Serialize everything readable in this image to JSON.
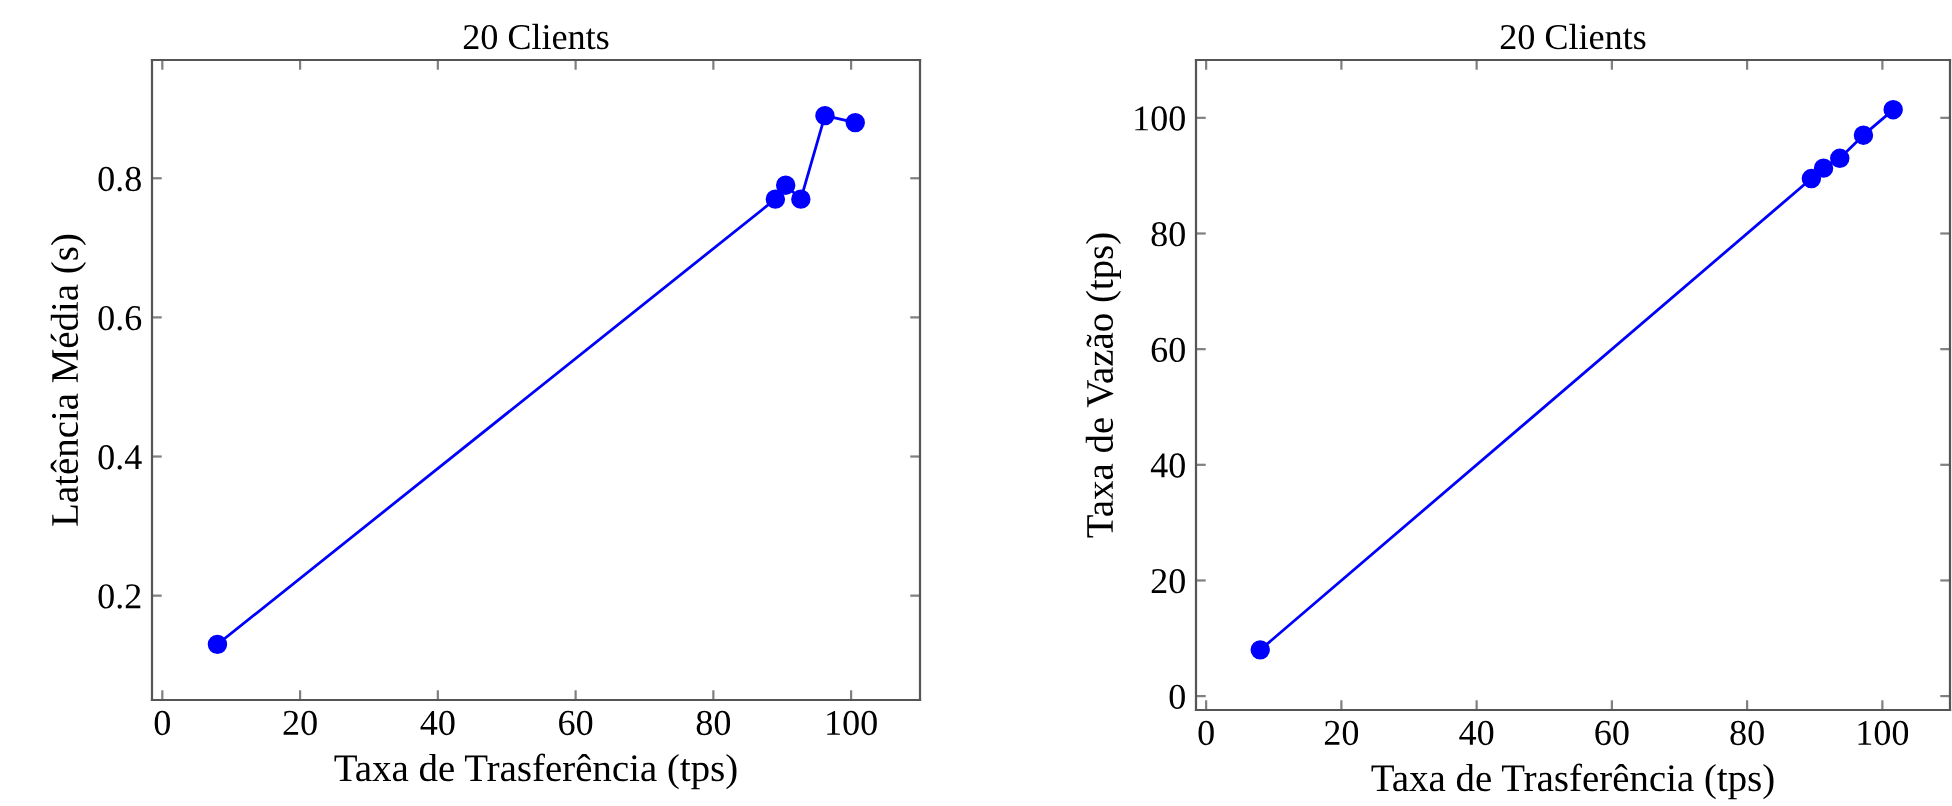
{
  "chart_data": [
    {
      "type": "line",
      "title": "20 Clients",
      "xlabel": "Taxa de Trasferência (tps)",
      "ylabel": "Latência Média (s)",
      "marker": "circle",
      "line_style": "solid",
      "grid": false,
      "legend": false,
      "x": [
        8,
        89,
        90.5,
        92.7,
        96.2,
        100.6
      ],
      "xlim": [
        -1.5,
        110
      ],
      "xticks": [
        0,
        20,
        40,
        60,
        80,
        100
      ],
      "ylim": [
        0.05,
        0.97
      ],
      "yticks": [
        0.2,
        0.4,
        0.6,
        0.8
      ],
      "series": [
        {
          "color": "#0000ff",
          "values": [
            0.13,
            0.77,
            0.79,
            0.77,
            0.89,
            0.88
          ]
        }
      ]
    },
    {
      "type": "line",
      "title": "20 Clients",
      "xlabel": "Taxa de Trasferência (tps)",
      "ylabel": "Taxa de Vazão (tps)",
      "marker": "circle",
      "line_style": "solid",
      "grid": false,
      "legend": false,
      "x": [
        8,
        89.5,
        91.3,
        93.7,
        97.2,
        101.6
      ],
      "xlim": [
        -1.5,
        110
      ],
      "xticks": [
        0,
        20,
        40,
        60,
        80,
        100
      ],
      "ylim": [
        -2.4,
        110
      ],
      "yticks": [
        0,
        20,
        40,
        60,
        80,
        100
      ],
      "series": [
        {
          "color": "#0000ff",
          "values": [
            8,
            89.5,
            91.3,
            93,
            97,
            101.4
          ]
        }
      ]
    }
  ]
}
